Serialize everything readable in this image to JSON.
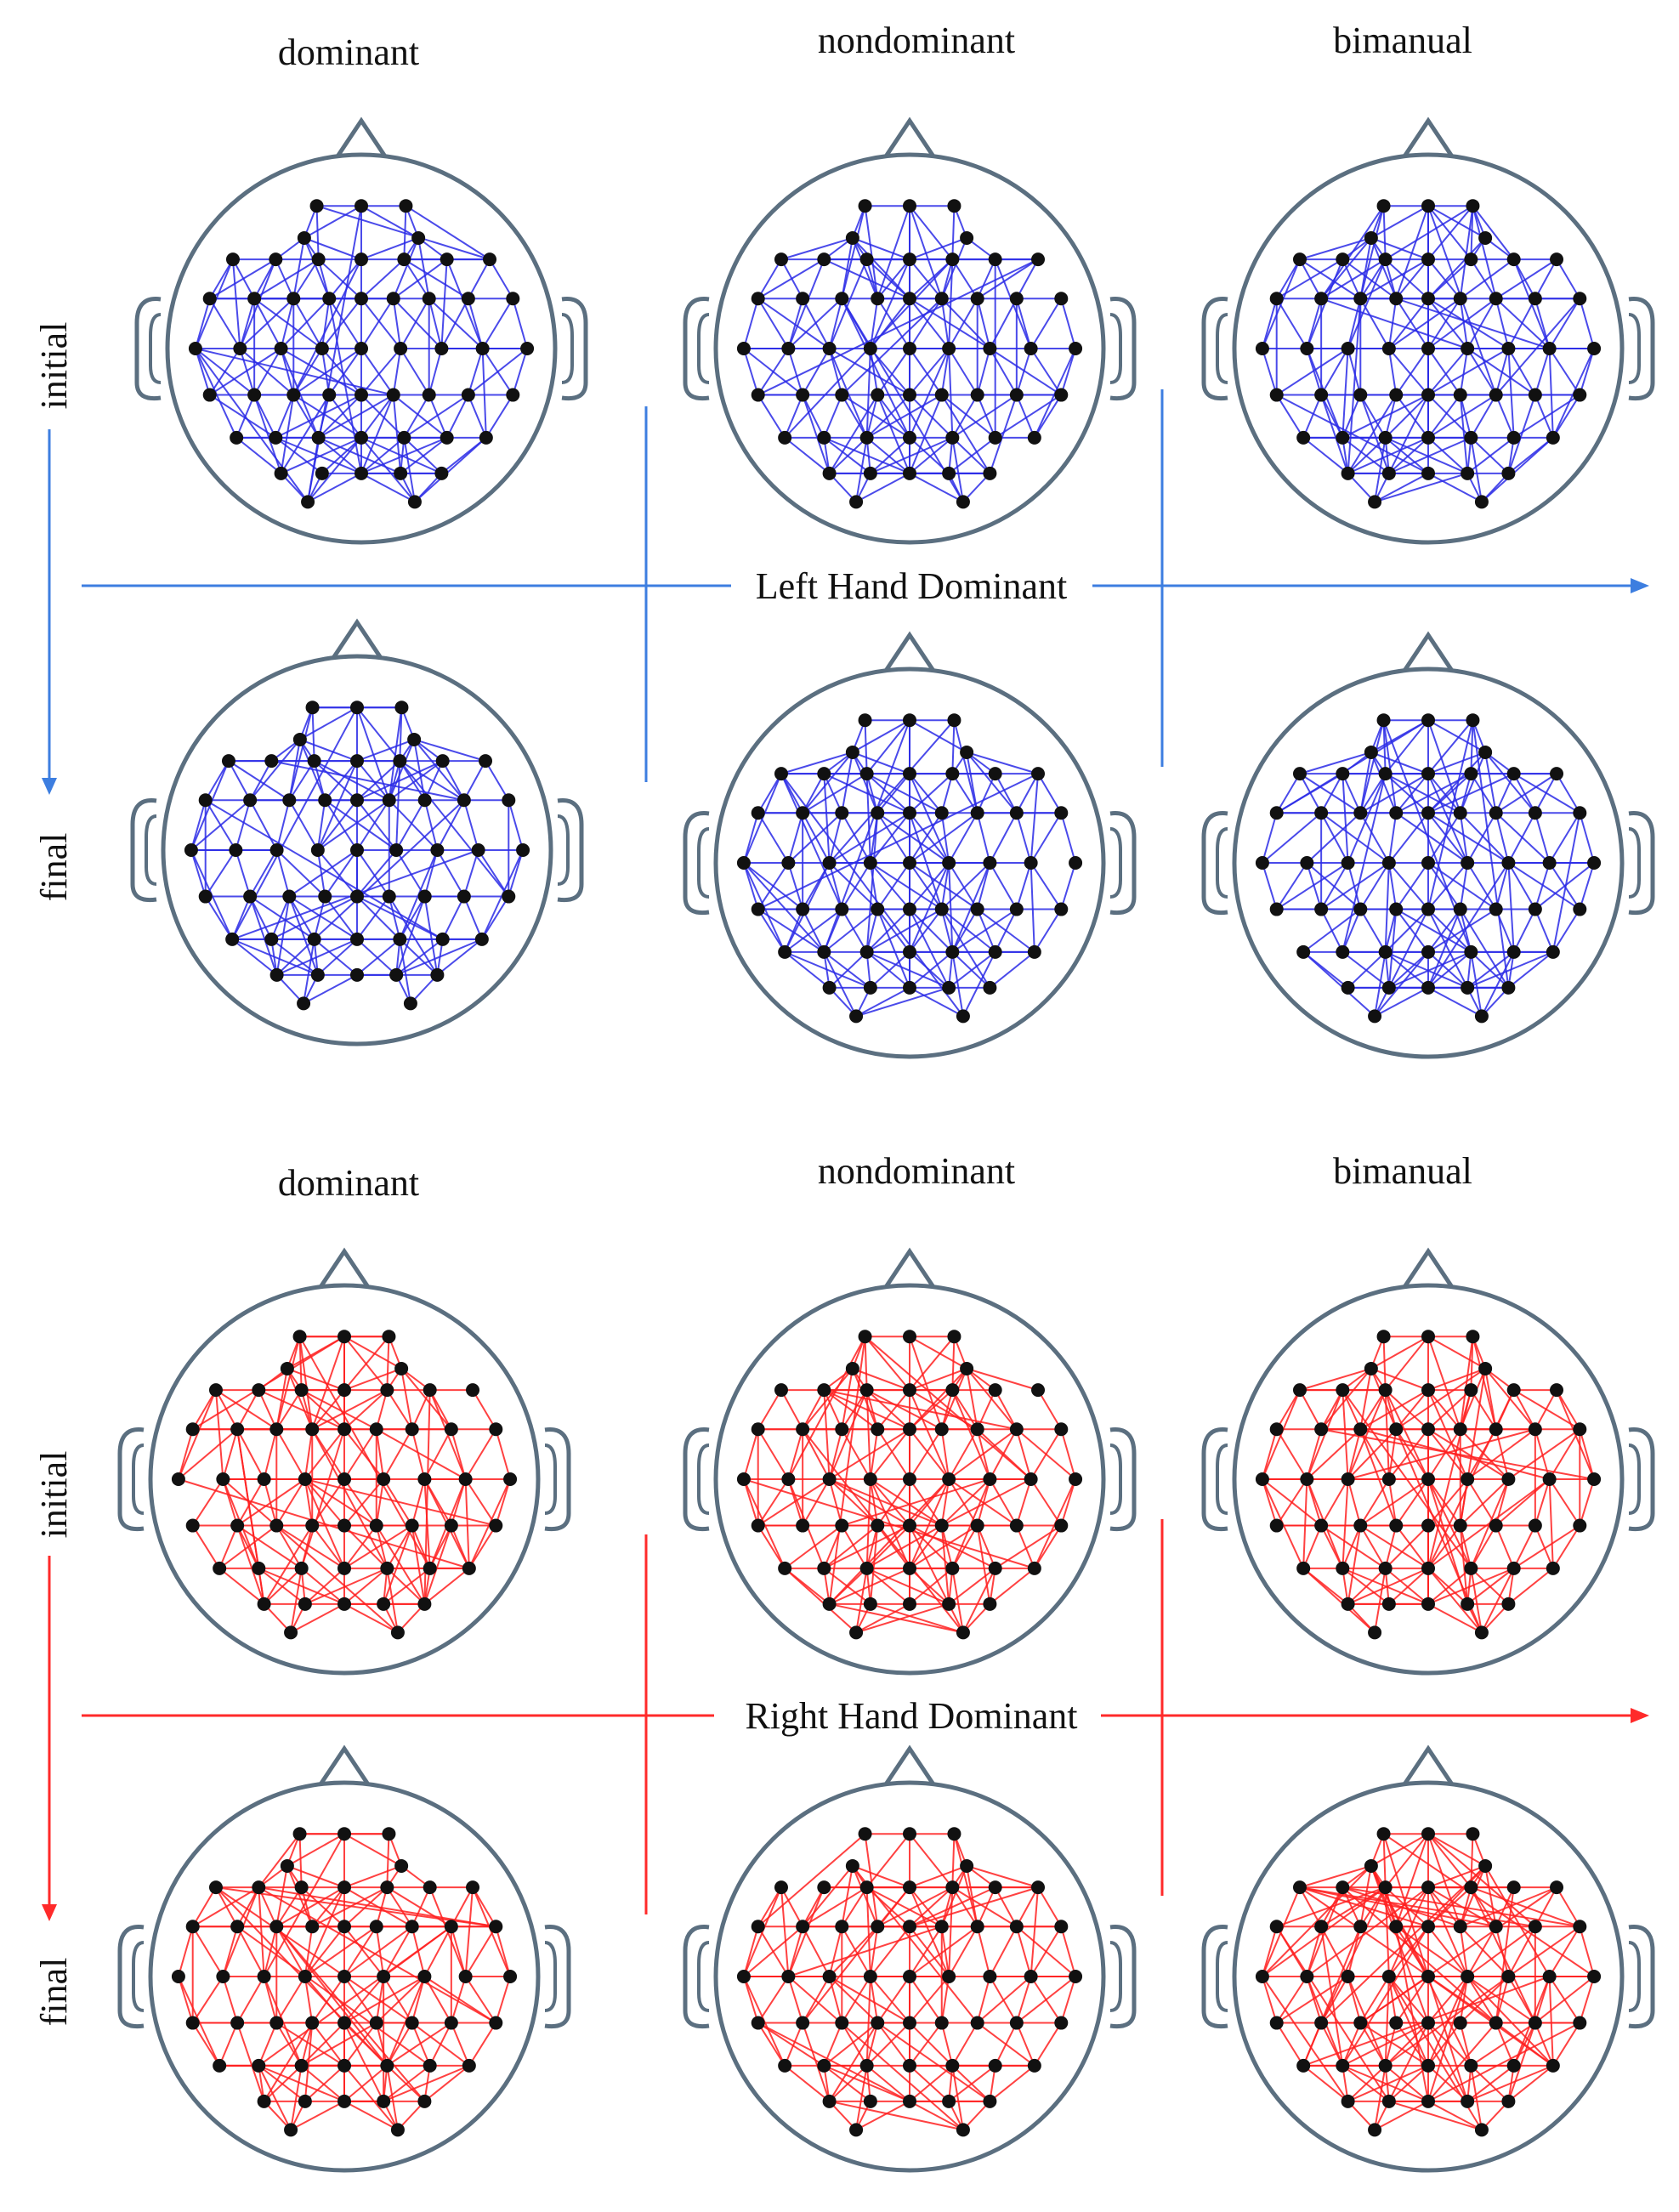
{
  "figure": {
    "sections": [
      {
        "id": "left",
        "title": "Left Hand Dominant",
        "color": "#2a2ae6",
        "arrow_color": "#3d7ee0",
        "columns": [
          "dominant",
          "nondominant",
          "bimanual"
        ],
        "rows": [
          "initial",
          "final"
        ]
      },
      {
        "id": "right",
        "title": "Right Hand Dominant",
        "color": "#ff2020",
        "arrow_color": "#ff2a2a",
        "columns": [
          "dominant",
          "nondominant",
          "bimanual"
        ],
        "rows": [
          "initial",
          "final"
        ]
      }
    ],
    "icons": {
      "head": "head-icon",
      "nose": "nose-icon",
      "ear": "ear-icon",
      "electrode": "electrode-icon",
      "arrow": "arrow-icon"
    }
  }
}
